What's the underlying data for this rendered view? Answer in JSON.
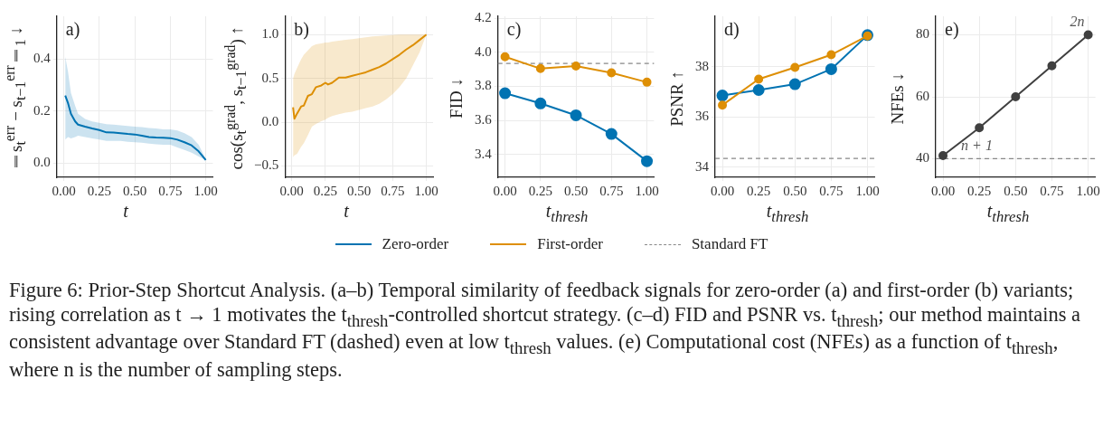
{
  "chart_data": [
    {
      "type": "line",
      "title": "a)",
      "xlabel": "t",
      "ylabel": "‖s$_{t}$$^{err}$ − s$_{t−1}$$^{err}$‖$_{1}$ ↓",
      "annotations": [
        "Figure 6: Prior-Step Shortcut Analysis. (a–b) Temporal similarity of feedback signals for zero-order (a) and first-order (b) variants; rising correlation as t → 1 motivates the t$_{thresh}$-controlled shortcut strategy. (c–d) FID and PSNR vs. t$_{thresh}$; our method maintains a consistent advantage over Standard FT (dashed) even at low t$_{thresh}$ values. (e) Computational cost (NFEs) as a function of t$_{thresh}$, where n is the number of sampling steps."
      ],
      "x": [
        0.01,
        0.03,
        0.05,
        0.08,
        0.1,
        0.15,
        0.2,
        0.25,
        0.3,
        0.35,
        0.4,
        0.45,
        0.5,
        0.55,
        0.6,
        0.65,
        0.7,
        0.75,
        0.8,
        0.85,
        0.9,
        0.95,
        1.0
      ],
      "series": [
        {
          "color": "#0173b2",
          "values": [
            0.26,
            0.23,
            0.19,
            0.16,
            0.148,
            0.14,
            0.133,
            0.127,
            0.118,
            0.117,
            0.115,
            0.112,
            0.11,
            0.105,
            0.1,
            0.098,
            0.097,
            0.096,
            0.09,
            0.08,
            0.068,
            0.045,
            0.012
          ],
          "upper": [
            0.41,
            0.35,
            0.27,
            0.22,
            0.19,
            0.17,
            0.16,
            0.155,
            0.15,
            0.148,
            0.145,
            0.143,
            0.14,
            0.138,
            0.135,
            0.133,
            0.13,
            0.13,
            0.125,
            0.115,
            0.1,
            0.07,
            0.015
          ],
          "lower": [
            0.09,
            0.1,
            0.095,
            0.1,
            0.105,
            0.1,
            0.095,
            0.09,
            0.085,
            0.085,
            0.085,
            0.082,
            0.08,
            0.078,
            0.075,
            0.072,
            0.07,
            0.07,
            0.06,
            0.05,
            0.04,
            0.025,
            0.01
          ]
        }
      ],
      "xlim": [
        -0.05,
        1.05
      ],
      "xticks": [
        {
          "value": 0,
          "label": "0.00"
        },
        {
          "value": 0.25,
          "label": "0.25"
        },
        {
          "value": 0.5,
          "label": "0.50"
        },
        {
          "value": 0.75,
          "label": "0.75"
        },
        {
          "value": 1,
          "label": "1.00"
        }
      ],
      "ylim": [
        -0.055,
        0.565
      ],
      "yticks": [
        {
          "value": 0,
          "label": "0.0"
        },
        {
          "value": 0.2,
          "label": "0.2"
        },
        {
          "value": 0.4,
          "label": "0.4"
        }
      ],
      "grid": true
    },
    {
      "type": "line",
      "title": "b)",
      "xlabel": "t",
      "ylabel": "cos(s$_{t}$$^{grad}$, s$_{t−1}$$^{grad}$) ↑",
      "x": [
        0.01,
        0.02,
        0.04,
        0.07,
        0.09,
        0.12,
        0.15,
        0.18,
        0.22,
        0.25,
        0.27,
        0.3,
        0.35,
        0.4,
        0.45,
        0.5,
        0.55,
        0.6,
        0.65,
        0.7,
        0.75,
        0.8,
        0.85,
        0.9,
        0.95,
        1.0
      ],
      "series": [
        {
          "color": "#de8f05",
          "values": [
            0.17,
            0.04,
            0.1,
            0.18,
            0.19,
            0.3,
            0.32,
            0.4,
            0.42,
            0.45,
            0.43,
            0.45,
            0.51,
            0.51,
            0.53,
            0.55,
            0.57,
            0.6,
            0.63,
            0.67,
            0.72,
            0.77,
            0.83,
            0.88,
            0.94,
            1.0
          ],
          "upper": [
            0.5,
            0.55,
            0.62,
            0.72,
            0.77,
            0.82,
            0.87,
            0.89,
            0.9,
            0.91,
            0.91,
            0.92,
            0.93,
            0.94,
            0.95,
            0.96,
            0.97,
            0.98,
            0.985,
            0.99,
            0.995,
            1.0,
            1.0,
            1.0,
            1.0,
            1.0
          ],
          "lower": [
            -0.4,
            -0.38,
            -0.36,
            -0.28,
            -0.24,
            -0.15,
            -0.05,
            -0.02,
            0.01,
            0.03,
            0.05,
            0.07,
            0.09,
            0.11,
            0.12,
            0.14,
            0.16,
            0.18,
            0.21,
            0.26,
            0.32,
            0.4,
            0.5,
            0.65,
            0.8,
            1.0
          ]
        }
      ],
      "xlim": [
        -0.05,
        1.05
      ],
      "xticks": [
        {
          "value": 0,
          "label": "0.00"
        },
        {
          "value": 0.25,
          "label": "0.25"
        },
        {
          "value": 0.5,
          "label": "0.50"
        },
        {
          "value": 0.75,
          "label": "0.75"
        },
        {
          "value": 1,
          "label": "1.00"
        }
      ],
      "ylim": [
        -0.63,
        1.21
      ],
      "yticks": [
        {
          "value": -0.5,
          "label": "−0.5"
        },
        {
          "value": 0,
          "label": "0.0"
        },
        0.5,
        {
          "value": 1,
          "label": "1.0"
        }
      ],
      "grid": true
    },
    {
      "type": "line",
      "title": "c)",
      "xlabel": "t$_{thresh}$",
      "ylabel": "FID ↓",
      "x": [
        0,
        0.25,
        0.5,
        0.75,
        1
      ],
      "series": [
        {
          "name": "Zero-order",
          "color": "#0173b2",
          "values": [
            3.76,
            3.7,
            3.63,
            3.52,
            3.36
          ]
        },
        {
          "name": "First-order",
          "color": "#de8f05",
          "values": [
            3.975,
            3.905,
            3.92,
            3.88,
            3.825
          ]
        }
      ],
      "ref_lines": [
        {
          "axis": "y",
          "value": 3.935,
          "label": "Standard FT",
          "color": "#888888",
          "line_style": "dashed"
        }
      ],
      "xlim": [
        -0.05,
        1.05
      ],
      "xticks": [
        {
          "value": 0,
          "label": "0.00"
        },
        {
          "value": 0.25,
          "label": "0.25"
        },
        {
          "value": 0.5,
          "label": "0.50"
        },
        {
          "value": 0.75,
          "label": "0.75"
        },
        {
          "value": 1,
          "label": "1.00"
        }
      ],
      "ylim": [
        3.265,
        4.213
      ],
      "yticks": [
        3.4,
        3.6,
        3.8,
        {
          "value": 4,
          "label": "4.0"
        },
        4.2
      ],
      "grid": true,
      "marker": "circle",
      "legend": "bottom"
    },
    {
      "type": "line",
      "title": "d)",
      "xlabel": "t$_{thresh}$",
      "ylabel": "PSNR ↑",
      "x": [
        0,
        0.25,
        0.5,
        0.75,
        1
      ],
      "series": [
        {
          "color": "#0173b2",
          "values": [
            36.85,
            37.07,
            37.3,
            37.9,
            39.25
          ]
        },
        {
          "color": "#de8f05",
          "values": [
            36.47,
            37.5,
            37.97,
            38.47,
            39.22
          ]
        }
      ],
      "ref_lines": [
        {
          "axis": "y",
          "value": 34.35,
          "color": "#888888",
          "line_style": "dashed"
        }
      ],
      "xlim": [
        -0.05,
        1.05
      ],
      "xticks": [
        {
          "value": 0,
          "label": "0.00"
        },
        {
          "value": 0.25,
          "label": "0.25"
        },
        {
          "value": 0.5,
          "label": "0.50"
        },
        {
          "value": 0.75,
          "label": "0.75"
        },
        {
          "value": 1,
          "label": "1.00"
        }
      ],
      "ylim": [
        33.6,
        40.0
      ],
      "yticks": [
        34,
        36,
        38
      ],
      "grid": true,
      "marker": "circle"
    },
    {
      "type": "line",
      "title": "e)",
      "xlabel": "t$_{thresh}$",
      "ylabel": "NFEs ↓",
      "annotations": [
        {
          "text": "n + 1",
          "x": 0.1,
          "y": 40
        },
        {
          "text": "2n",
          "x": 1,
          "y": 80
        }
      ],
      "x": [
        0,
        0.25,
        0.5,
        0.75,
        1
      ],
      "series": [
        {
          "color": "#404040",
          "values": [
            41,
            50,
            60,
            70,
            80
          ]
        }
      ],
      "ref_lines": [
        {
          "axis": "y",
          "value": 40,
          "color": "#888888",
          "line_style": "dashed"
        }
      ],
      "xlim": [
        -0.05,
        1.05
      ],
      "xticks": [
        {
          "value": 0,
          "label": "0.00"
        },
        {
          "value": 0.25,
          "label": "0.25"
        },
        {
          "value": 0.5,
          "label": "0.50"
        },
        {
          "value": 0.75,
          "label": "0.75"
        },
        {
          "value": 1,
          "label": "1.00"
        }
      ],
      "ylim": [
        34,
        86
      ],
      "yticks": [
        40,
        60,
        80
      ],
      "grid": true,
      "marker": "circle"
    }
  ]
}
